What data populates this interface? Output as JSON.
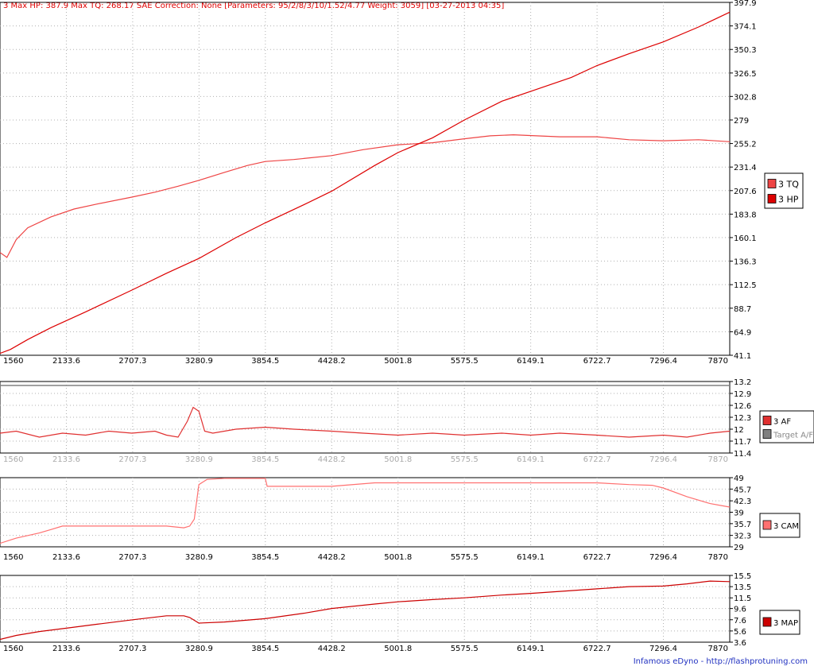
{
  "title": "3 Max HP: 387.9 Max TQ: 268.17 SAE Correction: None [Parameters: 95/2/8/3/10/1.52/4.77 Weight: 3059] [03-27-2013 04:35]",
  "footer": "Infamous eDyno - http://flashprotuning.com",
  "colors": {
    "hp": "#dd0000",
    "tq": "#ee4444",
    "af": "#e03030",
    "target_af": "#808080",
    "cam": "#ff7070",
    "map": "#cc0000",
    "grid": "#b0b0b0"
  },
  "chart_data": [
    {
      "type": "line",
      "id": "power",
      "x_ticks": [
        "1560",
        "2133.6",
        "2707.3",
        "3280.9",
        "3854.5",
        "4428.2",
        "5001.8",
        "5575.5",
        "6149.1",
        "6722.7",
        "7296.4",
        "7870"
      ],
      "xlim": [
        1560,
        7870
      ],
      "y_ticks": [
        "397.9",
        "374.1",
        "350.3",
        "326.5",
        "302.8",
        "279",
        "255.2",
        "231.4",
        "207.6",
        "183.8",
        "160.1",
        "136.3",
        "112.5",
        "88.7",
        "64.9",
        "41.1"
      ],
      "ylim": [
        41.1,
        397.9
      ],
      "grid": true,
      "legend_position": "right",
      "series": [
        {
          "name": "3 TQ",
          "color_key": "tq",
          "x": [
            1560,
            1620,
            1700,
            1800,
            2000,
            2200,
            2400,
            2700,
            2900,
            3100,
            3280,
            3500,
            3700,
            3854,
            4100,
            4428,
            4700,
            5001,
            5300,
            5575,
            5800,
            6000,
            6200,
            6400,
            6722,
            7000,
            7296,
            7600,
            7870
          ],
          "y": [
            145,
            140,
            158,
            170,
            181,
            189,
            194,
            201,
            206,
            212,
            218,
            226,
            233,
            237,
            239,
            243,
            249,
            254,
            256,
            260,
            263,
            264,
            263,
            262,
            262,
            259,
            258,
            259,
            257
          ]
        },
        {
          "name": "3 HP",
          "color_key": "hp",
          "x": [
            1560,
            1650,
            1800,
            2000,
            2300,
            2700,
            3000,
            3280,
            3600,
            3854,
            4200,
            4428,
            4800,
            5001,
            5300,
            5575,
            5900,
            6149,
            6500,
            6722,
            7000,
            7296,
            7600,
            7870
          ],
          "y": [
            43,
            47,
            57,
            69,
            85,
            107,
            124,
            139,
            160,
            175,
            194,
            207,
            233,
            246,
            261,
            279,
            298,
            308,
            322,
            334,
            346,
            358,
            373,
            388
          ]
        }
      ]
    },
    {
      "type": "line",
      "id": "afr",
      "x_ticks": [
        "1560",
        "2133.6",
        "2707.3",
        "3280.9",
        "3854.5",
        "4428.2",
        "5001.8",
        "5575.5",
        "6149.1",
        "6722.7",
        "7296.4",
        "7870"
      ],
      "xlim": [
        1560,
        7870
      ],
      "y_ticks": [
        "13.2",
        "12.9",
        "12.6",
        "12.3",
        "12",
        "11.7",
        "11.4"
      ],
      "ylim": [
        11.4,
        13.2
      ],
      "grid": true,
      "legend_position": "right",
      "series": [
        {
          "name": "3 AF",
          "color_key": "af",
          "x": [
            1560,
            1700,
            1900,
            2100,
            2300,
            2500,
            2700,
            2900,
            3000,
            3100,
            3180,
            3230,
            3280,
            3330,
            3400,
            3600,
            3854,
            4100,
            4428,
            4700,
            5001,
            5300,
            5575,
            5900,
            6149,
            6400,
            6722,
            7000,
            7296,
            7500,
            7700,
            7870
          ],
          "y": [
            11.9,
            11.95,
            11.8,
            11.9,
            11.85,
            11.95,
            11.9,
            11.95,
            11.85,
            11.8,
            12.2,
            12.55,
            12.45,
            11.95,
            11.9,
            12.0,
            12.05,
            12.0,
            11.95,
            11.9,
            11.85,
            11.9,
            11.85,
            11.9,
            11.85,
            11.9,
            11.85,
            11.8,
            11.85,
            11.8,
            11.9,
            11.95
          ]
        },
        {
          "name": "Target A/F",
          "color_key": "target_af",
          "x": [
            1560,
            7870
          ],
          "y": [
            13.1,
            13.1
          ]
        }
      ]
    },
    {
      "type": "line",
      "id": "cam",
      "x_ticks": [
        "1560",
        "2133.6",
        "2707.3",
        "3280.9",
        "3854.5",
        "4428.2",
        "5001.8",
        "5575.5",
        "6149.1",
        "6722.7",
        "7296.4",
        "7870"
      ],
      "xlim": [
        1560,
        7870
      ],
      "y_ticks": [
        "49",
        "45.7",
        "42.3",
        "39",
        "35.7",
        "32.3",
        "29"
      ],
      "ylim": [
        29,
        49
      ],
      "grid": true,
      "legend_position": "right",
      "series": [
        {
          "name": "3 CAM",
          "color_key": "cam",
          "x": [
            1560,
            1700,
            1900,
            2000,
            2100,
            2400,
            2700,
            3000,
            3150,
            3200,
            3240,
            3280,
            3350,
            3500,
            3700,
            3854,
            3870,
            4200,
            4428,
            4800,
            5001,
            5300,
            5575,
            5900,
            6149,
            6400,
            6722,
            7000,
            7200,
            7296,
            7500,
            7700,
            7870
          ],
          "y": [
            30,
            31.5,
            33,
            34,
            35,
            35,
            35,
            35,
            34.5,
            35,
            37,
            47,
            48.5,
            48.8,
            48.8,
            48.8,
            46.5,
            46.5,
            46.5,
            47.5,
            47.5,
            47.5,
            47.5,
            47.5,
            47.5,
            47.5,
            47.5,
            47,
            46.8,
            46,
            43.5,
            41.5,
            40.5
          ]
        }
      ]
    },
    {
      "type": "line",
      "id": "map",
      "x_ticks": [
        "1560",
        "2133.6",
        "2707.3",
        "3280.9",
        "3854.5",
        "4428.2",
        "5001.8",
        "5575.5",
        "6149.1",
        "6722.7",
        "7296.4",
        "7870"
      ],
      "xlim": [
        1560,
        7870
      ],
      "y_ticks": [
        "15.5",
        "13.5",
        "11.5",
        "9.6",
        "7.6",
        "5.6",
        "3.6"
      ],
      "ylim": [
        3.6,
        15.5
      ],
      "grid": true,
      "legend_position": "right",
      "series": [
        {
          "name": "3 MAP",
          "color_key": "map",
          "x": [
            1560,
            1700,
            1900,
            2133,
            2400,
            2707,
            3000,
            3150,
            3200,
            3280,
            3500,
            3854,
            4200,
            4428,
            4800,
            5001,
            5300,
            5575,
            5900,
            6149,
            6500,
            6722,
            7000,
            7296,
            7500,
            7700,
            7870
          ],
          "y": [
            4.1,
            4.8,
            5.5,
            6.1,
            6.8,
            7.6,
            8.3,
            8.3,
            8.0,
            7.0,
            7.2,
            7.8,
            8.8,
            9.6,
            10.4,
            10.8,
            11.2,
            11.5,
            12.0,
            12.3,
            12.8,
            13.1,
            13.5,
            13.6,
            14.0,
            14.5,
            14.4
          ]
        }
      ]
    }
  ]
}
